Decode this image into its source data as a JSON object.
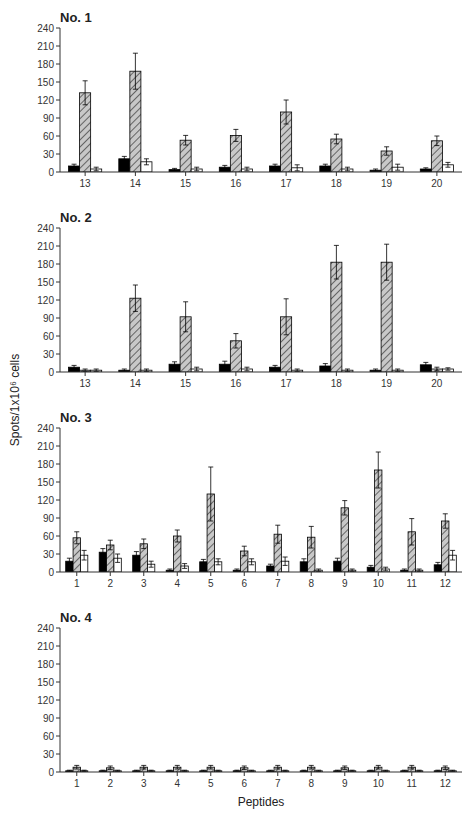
{
  "chart_data": [
    {
      "type": "bar",
      "title": "No. 1",
      "categories": [
        "13",
        "14",
        "15",
        "16",
        "17",
        "18",
        "19",
        "20"
      ],
      "series": [
        {
          "color": "#000000",
          "values": [
            10,
            22,
            4,
            8,
            10,
            10,
            3,
            5
          ],
          "errors": [
            3,
            4,
            2,
            3,
            3,
            3,
            2,
            2
          ]
        },
        {
          "color": "#c8c8c8",
          "values": [
            132,
            168,
            53,
            61,
            100,
            55,
            35,
            52
          ],
          "errors": [
            20,
            30,
            8,
            10,
            20,
            8,
            7,
            8
          ]
        },
        {
          "color": "#ffffff",
          "values": [
            5,
            17,
            5,
            5,
            7,
            5,
            8,
            12
          ],
          "errors": [
            3,
            5,
            3,
            3,
            5,
            3,
            5,
            4
          ]
        }
      ],
      "ylim": [
        0,
        240
      ],
      "yticks": [
        0,
        30,
        60,
        90,
        120,
        150,
        180,
        210,
        240
      ],
      "grid": false,
      "ylabel": "Spots/1x10⁶ cells"
    },
    {
      "type": "bar",
      "title": "No. 2",
      "categories": [
        "13",
        "14",
        "15",
        "16",
        "17",
        "18",
        "19",
        "20"
      ],
      "series": [
        {
          "color": "#000000",
          "values": [
            8,
            3,
            13,
            13,
            8,
            10,
            3,
            12
          ],
          "errors": [
            3,
            2,
            4,
            5,
            3,
            4,
            2,
            4
          ]
        },
        {
          "color": "#c8c8c8",
          "values": [
            3,
            123,
            92,
            52,
            92,
            183,
            183,
            5
          ],
          "errors": [
            2,
            22,
            25,
            12,
            30,
            28,
            30,
            3
          ]
        },
        {
          "color": "#ffffff",
          "values": [
            3,
            3,
            5,
            5,
            3,
            3,
            3,
            5
          ],
          "errors": [
            2,
            2,
            3,
            3,
            2,
            2,
            2,
            2
          ]
        }
      ],
      "ylim": [
        0,
        240
      ],
      "yticks": [
        0,
        30,
        60,
        90,
        120,
        150,
        180,
        210,
        240
      ],
      "grid": false
    },
    {
      "type": "bar",
      "title": "No. 3",
      "categories": [
        "1",
        "2",
        "3",
        "4",
        "5",
        "6",
        "7",
        "8",
        "9",
        "10",
        "11",
        "12"
      ],
      "series": [
        {
          "color": "#000000",
          "values": [
            18,
            33,
            28,
            3,
            17,
            3,
            10,
            17,
            18,
            8,
            3,
            12
          ],
          "errors": [
            5,
            6,
            6,
            2,
            4,
            2,
            3,
            5,
            5,
            3,
            2,
            4
          ]
        },
        {
          "color": "#c8c8c8",
          "values": [
            57,
            45,
            47,
            60,
            130,
            35,
            63,
            58,
            107,
            170,
            67,
            85
          ],
          "errors": [
            10,
            8,
            8,
            10,
            45,
            8,
            15,
            18,
            12,
            30,
            22,
            12
          ]
        },
        {
          "color": "#ffffff",
          "values": [
            28,
            23,
            13,
            10,
            17,
            17,
            18,
            3,
            3,
            5,
            3,
            28
          ],
          "errors": [
            8,
            7,
            5,
            4,
            5,
            5,
            7,
            2,
            2,
            3,
            2,
            8
          ]
        }
      ],
      "ylim": [
        0,
        240
      ],
      "yticks": [
        0,
        30,
        60,
        90,
        120,
        150,
        180,
        210,
        240
      ],
      "grid": false
    },
    {
      "type": "bar",
      "title": "No. 4",
      "categories": [
        "1",
        "2",
        "3",
        "4",
        "5",
        "6",
        "7",
        "8",
        "9",
        "10",
        "11",
        "12"
      ],
      "series": [
        {
          "color": "#000000",
          "values": [
            2,
            2,
            2,
            2,
            2,
            2,
            2,
            2,
            2,
            2,
            2,
            2
          ],
          "errors": [
            1,
            1,
            1,
            1,
            1,
            1,
            1,
            1,
            1,
            1,
            1,
            1
          ]
        },
        {
          "color": "#c8c8c8",
          "values": [
            8,
            7,
            8,
            8,
            8,
            7,
            8,
            8,
            7,
            8,
            8,
            7
          ],
          "errors": [
            3,
            3,
            3,
            3,
            3,
            3,
            3,
            3,
            3,
            3,
            3,
            3
          ]
        },
        {
          "color": "#ffffff",
          "values": [
            2,
            2,
            2,
            2,
            2,
            2,
            2,
            2,
            2,
            2,
            2,
            2
          ],
          "errors": [
            1,
            1,
            1,
            1,
            1,
            1,
            1,
            1,
            1,
            1,
            1,
            1
          ]
        }
      ],
      "ylim": [
        0,
        240
      ],
      "yticks": [
        0,
        30,
        60,
        90,
        120,
        150,
        180,
        210,
        240
      ],
      "grid": false,
      "xlabel": "Peptides"
    }
  ]
}
